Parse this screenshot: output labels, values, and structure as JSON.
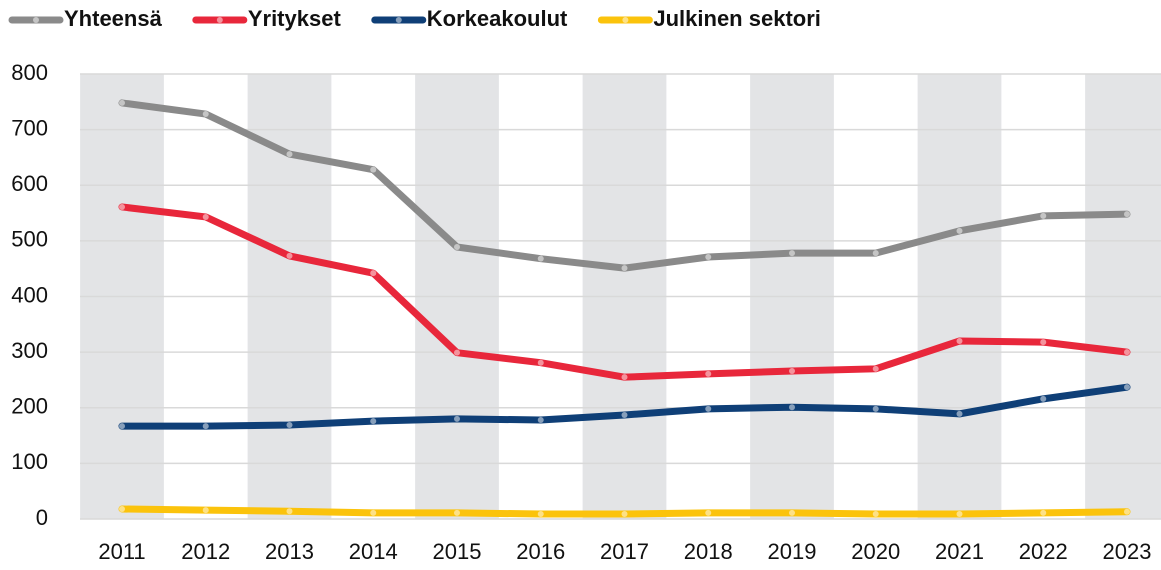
{
  "chart_data": {
    "type": "line",
    "categories": [
      "2011",
      "2012",
      "2013",
      "2014",
      "2015",
      "2016",
      "2017",
      "2018",
      "2019",
      "2020",
      "2021",
      "2022",
      "2023"
    ],
    "series": [
      {
        "name": "Yhteensä",
        "color": "#8a8a8a",
        "values": [
          748,
          728,
          656,
          628,
          489,
          468,
          451,
          471,
          478,
          478,
          518,
          545,
          548
        ]
      },
      {
        "name": "Yritykset",
        "color": "#e8273b",
        "values": [
          561,
          543,
          473,
          442,
          299,
          281,
          255,
          261,
          266,
          270,
          320,
          318,
          300
        ]
      },
      {
        "name": "Korkeakoulut",
        "color": "#0f3f77",
        "values": [
          167,
          167,
          169,
          176,
          180,
          178,
          187,
          198,
          201,
          198,
          189,
          216,
          237
        ]
      },
      {
        "name": "Julkinen sektori",
        "color": "#fbc30c",
        "values": [
          18,
          16,
          14,
          11,
          11,
          9,
          9,
          11,
          11,
          9,
          9,
          11,
          13
        ]
      }
    ],
    "ylim": [
      0,
      800
    ],
    "yticks": [
      0,
      100,
      200,
      300,
      400,
      500,
      600,
      700,
      800
    ],
    "grid": true
  }
}
